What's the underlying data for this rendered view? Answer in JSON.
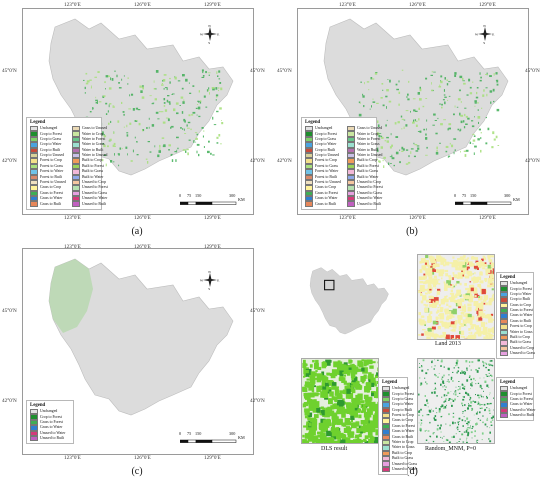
{
  "ticks": {
    "top": [
      "123°0′E",
      "126°0′E",
      "129°0′E"
    ],
    "left": [
      "45°0′N",
      "42°0′N"
    ]
  },
  "captions": [
    "(a)",
    "(b)",
    "(c)",
    "(d)"
  ],
  "legend_title": "Legend",
  "legend_ab_left": [
    "Unchanged",
    "Crop to Forest",
    "Crop to Grass",
    "Crop to Water",
    "Crop to Built",
    "Crop to Unused",
    "Forest to Crop",
    "Forest to Grass",
    "Forest to Water",
    "Forest to Built",
    "Forest to Unused",
    "Grass to Crop",
    "Grass to Forest",
    "Grass to Water",
    "Grass to Built"
  ],
  "legend_ab_right": [
    "Grass to Unused",
    "Water to Crop",
    "Water to Forest",
    "Water to Grass",
    "Water to Built",
    "Water to Unused",
    "Built to Crop",
    "Built to Forest",
    "Built to Grass",
    "Built to Water",
    "Unused to Crop",
    "Unused to Forest",
    "Unused to Grass",
    "Unused to Water",
    "Unused to Built"
  ],
  "legend_c": [
    "Unchanged",
    "Crop to Forest",
    "Grass to Forest",
    "Grass to Water",
    "Unused to Water",
    "Unused to Built"
  ],
  "legend_land2013": [
    "Unchanged",
    "Crop to Forest",
    "Crop to Water",
    "Crop to Built",
    "Grass to Crop",
    "Grass to Forest",
    "Grass to Water",
    "Grass to Built",
    "Forest to Crop",
    "Water to Grass",
    "Built to Crop",
    "Built to Grass",
    "Unused to Crop",
    "Unused to Grass"
  ],
  "legend_dls": [
    "Unchanged",
    "Crop to Forest",
    "Crop to Grass",
    "Crop to Water",
    "Crop to Built",
    "Forest to Crop",
    "Grass to Crop",
    "Grass to Forest",
    "Grass to Water",
    "Grass to Built",
    "Water to Crop",
    "Water to Grass",
    "Built to Crop",
    "Built to Grass",
    "Unused to Grass",
    "Unused to Water"
  ],
  "legend_random": [
    "Unchanged",
    "Crop to Forest",
    "Grass to Forest",
    "Grass to Water",
    "Unused to Water",
    "Unused to Built"
  ],
  "scale": {
    "labels": [
      "0",
      "75",
      "150",
      "300"
    ],
    "unit": "KM"
  },
  "north_letters": {
    "n": "N",
    "s": "S",
    "e": "E",
    "w": "W"
  },
  "sublabels": {
    "land2013": "Land 2013",
    "dls": "DLS result",
    "random": "Random_MNM, P=0"
  },
  "colors": {
    "Unchanged": "#e2e2e2",
    "Crop to Forest": "#1e8f2e",
    "Crop to Grass": "#7fd36a",
    "Crop to Water": "#4aa3df",
    "Crop to Built": "#c84b3b",
    "Crop to Unused": "#d9d29a",
    "Forest to Crop": "#f3e08a",
    "Forest to Grass": "#a9e07e",
    "Forest to Water": "#6fc3e8",
    "Forest to Built": "#d98a6a",
    "Forest to Unused": "#efe0c0",
    "Grass to Crop": "#fff29a",
    "Grass to Forest": "#3fae55",
    "Grass to Water": "#2f7fd0",
    "Grass to Built": "#e7875a",
    "Grass to Unused": "#ead9b5",
    "Water to Crop": "#c9e6a0",
    "Water to Forest": "#67c58a",
    "Water to Grass": "#9be0d0",
    "Water to Built": "#b46fb0",
    "Water to Unused": "#c8c0e8",
    "Built to Crop": "#f09b5a",
    "Built to Forest": "#9bd35a",
    "Built to Grass": "#f2b8d8",
    "Built to Water": "#8fa8e8",
    "Unused to Crop": "#f5c6a0",
    "Unused to Forest": "#b5e0b0",
    "Unused to Grass": "#e6a0e0",
    "Unused to Water": "#d43a7a",
    "Unused to Built": "#c060c0"
  }
}
